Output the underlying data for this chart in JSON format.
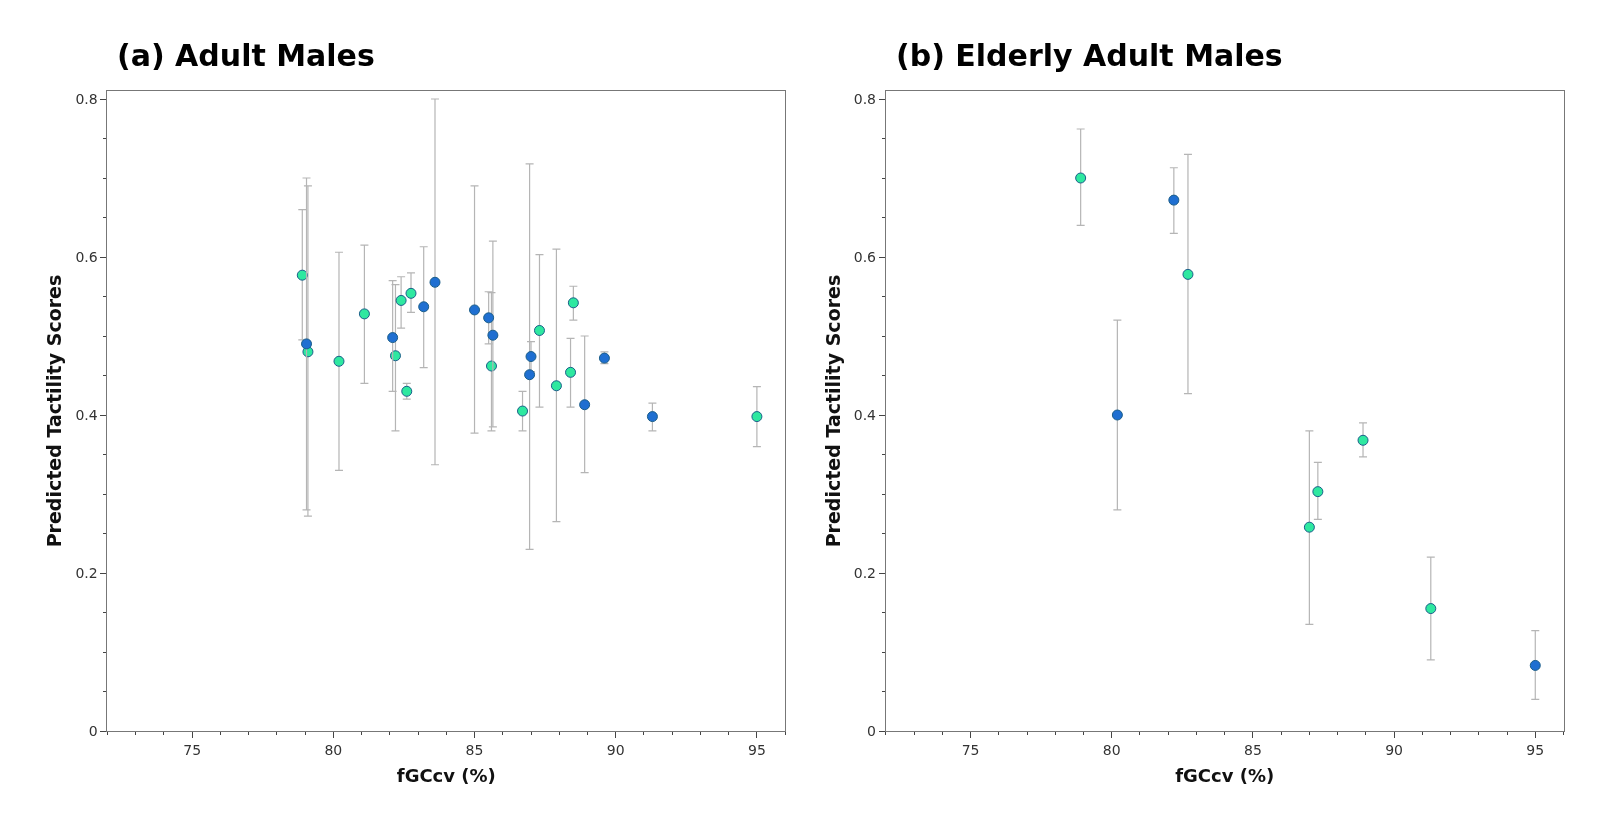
{
  "chart_data": [
    {
      "type": "scatter",
      "title": "(a) Adult Males",
      "xlabel": "fGCcv (%)",
      "ylabel": "Predicted Tactility Scores",
      "xlim": [
        72,
        96
      ],
      "xticks": [
        75,
        80,
        85,
        90,
        95
      ],
      "ylim": [
        0,
        0.81
      ],
      "yticks": [
        0,
        0.2,
        0.4,
        0.6,
        0.8
      ],
      "marker": "circle",
      "series": [
        {
          "color": "#2ee8a0",
          "x": [
            78.9,
            79.1,
            80.2,
            81.1,
            82.2,
            82.4,
            82.6,
            82.75,
            85.6,
            86.7,
            87.3,
            87.9,
            88.4,
            88.5,
            95.0
          ],
          "values": [
            0.577,
            0.48,
            0.468,
            0.528,
            0.475,
            0.545,
            0.43,
            0.554,
            0.462,
            0.405,
            0.507,
            0.437,
            0.454,
            0.542,
            0.398
          ],
          "errors": [
            [
              0.495,
              0.66
            ],
            [
              0.272,
              0.69
            ],
            [
              0.33,
              0.606
            ],
            [
              0.44,
              0.615
            ],
            [
              0.38,
              0.565
            ],
            [
              0.51,
              0.575
            ],
            [
              0.42,
              0.44
            ],
            [
              0.53,
              0.58
            ],
            [
              0.38,
              0.555
            ],
            [
              0.38,
              0.43
            ],
            [
              0.41,
              0.603
            ],
            [
              0.265,
              0.61
            ],
            [
              0.41,
              0.497
            ],
            [
              0.52,
              0.563
            ],
            [
              0.36,
              0.436
            ]
          ]
        },
        {
          "color": "#1f6fd1",
          "x": [
            79.05,
            82.1,
            83.2,
            83.6,
            85.0,
            85.5,
            85.65,
            87.0,
            86.95,
            88.9,
            89.6,
            91.3
          ],
          "values": [
            0.49,
            0.498,
            0.537,
            0.568,
            0.533,
            0.523,
            0.501,
            0.474,
            0.451,
            0.413,
            0.472,
            0.398
          ],
          "errors": [
            [
              0.28,
              0.7
            ],
            [
              0.43,
              0.57
            ],
            [
              0.46,
              0.613
            ],
            [
              0.337,
              0.8
            ],
            [
              0.377,
              0.69
            ],
            [
              0.49,
              0.556
            ],
            [
              0.385,
              0.62
            ],
            [
              0.455,
              0.493
            ],
            [
              0.23,
              0.718
            ],
            [
              0.327,
              0.5
            ],
            [
              0.465,
              0.48
            ],
            [
              0.38,
              0.415
            ]
          ]
        }
      ]
    },
    {
      "type": "scatter",
      "title": "(b) Elderly Adult Males",
      "xlabel": "fGCcv (%)",
      "ylabel": "Predicted Tactility Scores",
      "xlim": [
        72,
        96
      ],
      "xticks": [
        75,
        80,
        85,
        90,
        95
      ],
      "ylim": [
        0,
        0.81
      ],
      "yticks": [
        0,
        0.2,
        0.4,
        0.6,
        0.8
      ],
      "marker": "circle",
      "series": [
        {
          "color": "#2ee8a0",
          "x": [
            78.9,
            82.7,
            87.0,
            87.3,
            88.9,
            91.3
          ],
          "values": [
            0.7,
            0.578,
            0.258,
            0.303,
            0.368,
            0.155
          ],
          "errors": [
            [
              0.64,
              0.762
            ],
            [
              0.427,
              0.73
            ],
            [
              0.135,
              0.38
            ],
            [
              0.268,
              0.34
            ],
            [
              0.347,
              0.39
            ],
            [
              0.09,
              0.22
            ]
          ]
        },
        {
          "color": "#1f6fd1",
          "x": [
            80.2,
            82.2,
            95.0
          ],
          "values": [
            0.4,
            0.672,
            0.083
          ],
          "errors": [
            [
              0.28,
              0.52
            ],
            [
              0.63,
              0.713
            ],
            [
              0.04,
              0.127
            ]
          ]
        }
      ]
    }
  ]
}
